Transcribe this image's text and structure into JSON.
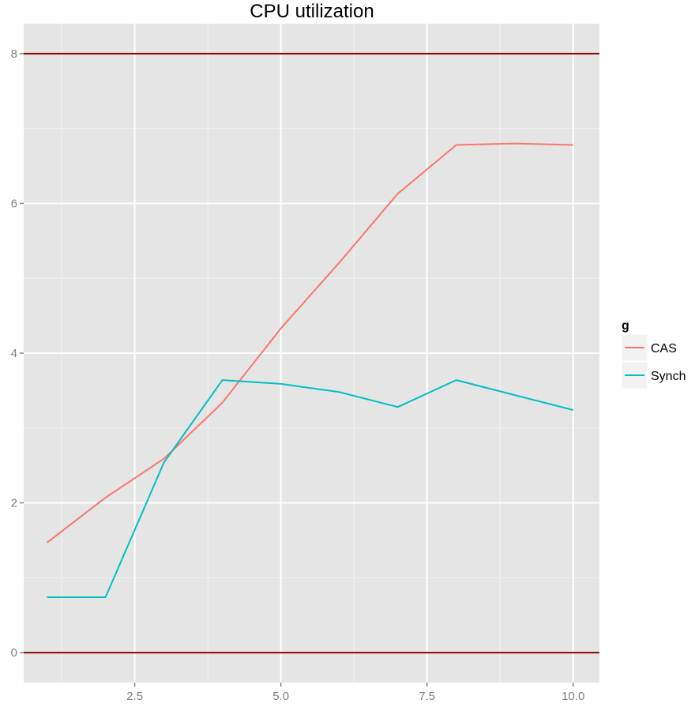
{
  "chart_data": {
    "type": "line",
    "title": "CPU utilization",
    "xlabel": "",
    "ylabel": "",
    "xlim": [
      0.6,
      10.45
    ],
    "ylim": [
      -0.4,
      8.4
    ],
    "x_ticks": [
      2.5,
      5.0,
      7.5,
      10.0
    ],
    "x_tick_labels": [
      "2.5",
      "5.0",
      "7.5",
      "10.0"
    ],
    "y_ticks": [
      0,
      2,
      4,
      6,
      8
    ],
    "y_tick_labels": [
      "0",
      "2",
      "4",
      "6",
      "8"
    ],
    "grid": true,
    "legend": {
      "title": "g",
      "position": "right"
    },
    "reference_lines": [
      {
        "y": 8,
        "color": "#8b0000"
      },
      {
        "y": 0,
        "color": "#8b0000"
      }
    ],
    "x": [
      1,
      2,
      3,
      4,
      5,
      6,
      7,
      8,
      9,
      10
    ],
    "series": [
      {
        "name": "CAS",
        "color": "#f8766d",
        "values": [
          1.47,
          2.07,
          2.59,
          3.34,
          4.33,
          5.21,
          6.13,
          6.78,
          6.8,
          6.78
        ]
      },
      {
        "name": "Synch",
        "color": "#00bfc4",
        "values": [
          0.74,
          0.74,
          2.54,
          3.64,
          3.59,
          3.48,
          3.28,
          3.64,
          3.44,
          3.24
        ]
      }
    ],
    "panel_background": "#e5e5e5",
    "grid_color": "#ffffff"
  }
}
